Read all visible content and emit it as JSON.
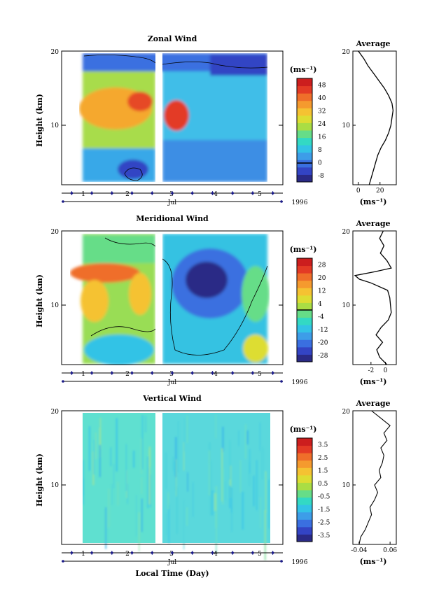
{
  "figure": {
    "xlabel": "Local Time (Day)",
    "month_label": "Jul",
    "year_label": "1996"
  },
  "chart_data": [
    {
      "type": "heatmap",
      "title": "Zonal Wind",
      "ylabel": "Height (km)",
      "xlabel": "Local Time (Day)",
      "x_ticks": [
        "1",
        "2",
        "3",
        "4",
        "5"
      ],
      "x_range": [
        0.5,
        5.5
      ],
      "y_ticks": [
        10,
        20
      ],
      "y_range": [
        2,
        20
      ],
      "unit": "(ms⁻¹)",
      "colorbar": {
        "ticks": [
          "-8",
          "0",
          "8",
          "16",
          "24",
          "32",
          "40",
          "48"
        ],
        "range": [
          -12,
          52
        ],
        "colors": [
          "#2a2a86",
          "#3344c4",
          "#3a6fe0",
          "#3d9de8",
          "#33c3e6",
          "#33d9c4",
          "#66dd88",
          "#aadd44",
          "#dddd33",
          "#f5c232",
          "#f59a2e",
          "#ef6e2a",
          "#e33a25",
          "#cc1e1e"
        ]
      },
      "average_profile": {
        "title": "Average",
        "xlabel": "(ms⁻¹)",
        "x_ticks": [
          "0",
          "20"
        ],
        "x_range": [
          -5,
          35
        ],
        "heights": [
          2,
          3,
          4,
          5,
          6,
          7,
          8,
          9,
          10,
          11,
          12,
          13,
          14,
          15,
          16,
          17,
          18,
          19,
          20
        ],
        "values": [
          10,
          12,
          14,
          16,
          18,
          21,
          25,
          28,
          30,
          31,
          32,
          31,
          28,
          24,
          19,
          14,
          9,
          5,
          0
        ]
      }
    },
    {
      "type": "heatmap",
      "title": "Meridional Wind",
      "ylabel": "Height (km)",
      "xlabel": "Local Time (Day)",
      "x_ticks": [
        "1",
        "2",
        "3",
        "4",
        "5"
      ],
      "x_range": [
        0.5,
        5.5
      ],
      "y_ticks": [
        10,
        20
      ],
      "y_range": [
        2,
        20
      ],
      "unit": "(ms⁻¹)",
      "colorbar": {
        "ticks": [
          "-28",
          "-20",
          "-12",
          "-4",
          "4",
          "12",
          "20",
          "28"
        ],
        "range": [
          -32,
          32
        ],
        "colors": [
          "#2a2a86",
          "#3344c4",
          "#3a6fe0",
          "#3d9de8",
          "#33c3e6",
          "#33d9c4",
          "#66dd88",
          "#aadd44",
          "#dddd33",
          "#f5c232",
          "#f59a2e",
          "#ef6e2a",
          "#e33a25",
          "#cc1e1e"
        ]
      },
      "average_profile": {
        "title": "Average",
        "xlabel": "(ms⁻¹)",
        "x_ticks": [
          "-2",
          "0"
        ],
        "x_range": [
          -4.5,
          1.5
        ],
        "heights": [
          2,
          3,
          4,
          5,
          6,
          7,
          8,
          9,
          10,
          11,
          12,
          13,
          13.5,
          14,
          14.5,
          15,
          16,
          17,
          18,
          19,
          20
        ],
        "values": [
          0.2,
          -0.8,
          -1.2,
          -0.4,
          -1.3,
          -0.6,
          0.4,
          0.8,
          0.7,
          0.6,
          0.3,
          -2.0,
          -3.6,
          -4.2,
          -1.5,
          0.8,
          0.2,
          -0.7,
          -0.2,
          -0.8,
          -0.3
        ]
      }
    },
    {
      "type": "heatmap",
      "title": "Vertical Wind",
      "ylabel": "Height (km)",
      "xlabel": "Local Time (Day)",
      "x_ticks": [
        "1",
        "2",
        "3",
        "4",
        "5"
      ],
      "x_range": [
        0.5,
        5.5
      ],
      "y_ticks": [
        10,
        20
      ],
      "y_range": [
        2,
        20
      ],
      "unit": "(ms⁻¹)",
      "colorbar": {
        "ticks": [
          "-3.5",
          "-2.5",
          "-1.5",
          "-0.5",
          "0.5",
          "1.5",
          "2.5",
          "3.5"
        ],
        "range": [
          -4,
          4
        ],
        "colors": [
          "#2a2a86",
          "#3344c4",
          "#3a6fe0",
          "#3d9de8",
          "#33c3e6",
          "#33d9c4",
          "#66dd88",
          "#aadd44",
          "#dddd33",
          "#f5c232",
          "#f59a2e",
          "#ef6e2a",
          "#e33a25",
          "#cc1e1e"
        ]
      },
      "average_profile": {
        "title": "Average",
        "xlabel": "(ms⁻¹)",
        "x_ticks": [
          "-0.04",
          "0.06"
        ],
        "x_range": [
          -0.06,
          0.08
        ],
        "heights": [
          2,
          3,
          4,
          5,
          6,
          7,
          8,
          9,
          10,
          11,
          12,
          13,
          14,
          15,
          16,
          17,
          18,
          19,
          20
        ],
        "values": [
          -0.04,
          -0.035,
          -0.02,
          -0.01,
          0.0,
          -0.005,
          0.01,
          0.02,
          0.01,
          0.03,
          0.025,
          0.035,
          0.04,
          0.03,
          0.05,
          0.04,
          0.06,
          0.03,
          0.0
        ]
      }
    }
  ]
}
